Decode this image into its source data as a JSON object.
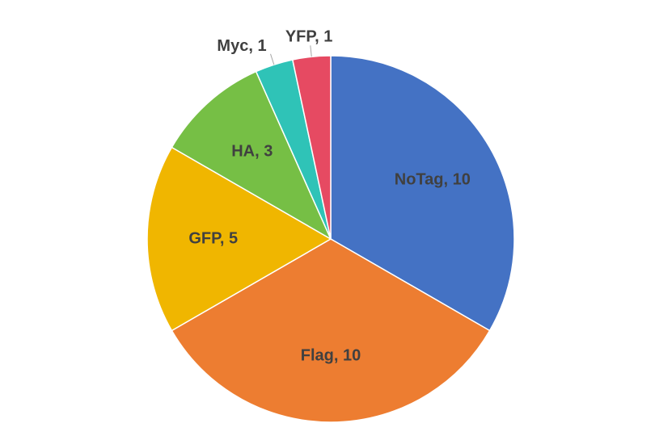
{
  "chart_data": {
    "type": "pie",
    "categories": [
      "NoTag",
      "Flag",
      "GFP",
      "HA",
      "Myc",
      "YFP"
    ],
    "values": [
      10,
      10,
      5,
      3,
      1,
      1
    ],
    "value_labels": [
      "NoTag, 10",
      "Flag, 10",
      "GFP, 5",
      "HA, 3",
      "Myc, 1",
      "YFP, 1"
    ],
    "colors": [
      "#4472c4",
      "#ed7d31",
      "#f0b600",
      "#76bf45",
      "#2fc3b7",
      "#e64a62"
    ]
  }
}
